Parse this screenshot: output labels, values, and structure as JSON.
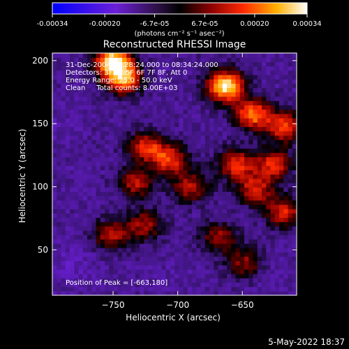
{
  "chart_data": {
    "type": "heatmap",
    "title": "Reconstructed RHESSI Image",
    "xlabel": "Heliocentric X (arcsec)",
    "ylabel": "Heliocentric Y (arcsec)",
    "xlim": [
      -797,
      -608
    ],
    "ylim": [
      14,
      206
    ],
    "x_ticks": [
      -750,
      -700,
      -650
    ],
    "y_ticks": [
      50,
      100,
      150,
      200
    ],
    "colorbar": {
      "range": [
        -0.00034,
        0.00034
      ],
      "tick_labels": [
        "-0.00034",
        "-0.00020",
        "-6.7e-05",
        "6.7e-05",
        "0.00020",
        "0.00034"
      ],
      "tick_values": [
        -0.00034,
        -0.0002,
        -6.7e-05,
        6.7e-05,
        0.0002,
        0.00034
      ],
      "units": "(photons cm⁻² s⁻¹ asec⁻²)"
    },
    "annotations": [
      "31-Dec-2004 08:28:24.000 to 08:34:24.000",
      "Detectors: 3F 4F 5F 6F 7F 8F, Att 0",
      "Energy Range: 25.0 - 50.0 keV",
      "Clean     Total counts: 8.00E+03"
    ],
    "peak_label": "Position of Peak = [-663,180]",
    "peak": [
      -663,
      180
    ],
    "hotspots": [
      {
        "x": -663,
        "y": 180,
        "value": 0.00034
      },
      {
        "x": -750,
        "y": 200,
        "value": 0.0003
      },
      {
        "x": -742,
        "y": 186,
        "value": 0.00024
      },
      {
        "x": -642,
        "y": 158,
        "value": 0.00022
      },
      {
        "x": -618,
        "y": 148,
        "value": 0.00018
      },
      {
        "x": -706,
        "y": 122,
        "value": 0.00016
      },
      {
        "x": -724,
        "y": 132,
        "value": 0.00014
      },
      {
        "x": -655,
        "y": 118,
        "value": 0.00016
      },
      {
        "x": -626,
        "y": 118,
        "value": 0.00015
      },
      {
        "x": -732,
        "y": 104,
        "value": 0.00012
      },
      {
        "x": -690,
        "y": 100,
        "value": 0.00012
      },
      {
        "x": -640,
        "y": 98,
        "value": 0.00014
      },
      {
        "x": -618,
        "y": 80,
        "value": 0.00014
      },
      {
        "x": -752,
        "y": 62,
        "value": 0.00011
      },
      {
        "x": -726,
        "y": 70,
        "value": 0.0001
      },
      {
        "x": -668,
        "y": 60,
        "value": 9e-05
      },
      {
        "x": -648,
        "y": 40,
        "value": 8e-05
      }
    ],
    "coldspots": [
      {
        "x": -790,
        "y": 150,
        "value": -0.00012
      },
      {
        "x": -770,
        "y": 100,
        "value": -0.0001
      },
      {
        "x": -780,
        "y": 40,
        "value": -0.00016
      },
      {
        "x": -700,
        "y": 30,
        "value": -0.00011
      },
      {
        "x": -630,
        "y": 30,
        "value": -0.00012
      },
      {
        "x": -690,
        "y": 200,
        "value": -8e-05
      },
      {
        "x": -760,
        "y": 140,
        "value": -8e-05
      }
    ],
    "grid": false
  },
  "footer": {
    "date": "5-May-2022 18:37"
  }
}
